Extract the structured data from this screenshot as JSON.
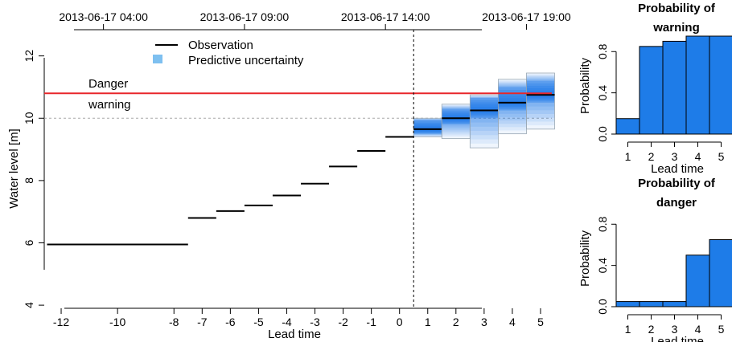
{
  "chart_data": [
    {
      "type": "line",
      "xlabel": "Lead time",
      "ylabel": "Water level [m]",
      "xlim": [
        -12.6,
        5.4
      ],
      "ylim": [
        3.9,
        12.3
      ],
      "x_ticks": [
        -12,
        -10,
        -8,
        -7,
        -6,
        -5,
        -4,
        -3,
        -2,
        -1,
        0,
        1,
        2,
        3,
        4,
        5
      ],
      "y_ticks": [
        4,
        6,
        8,
        10,
        12
      ],
      "top_axis": {
        "ticks_at": [
          -10.5,
          -5.5,
          -0.5,
          4.5
        ],
        "labels": [
          "2013-06-17 04:00",
          "2013-06-17 09:00",
          "2013-06-17 14:00",
          "2013-06-17 19:00"
        ]
      },
      "legend": {
        "position": "top",
        "entries": [
          "Observation",
          "Predictive uncertainty"
        ]
      },
      "threshold_lines": [
        {
          "label": "Danger",
          "y": 10.8,
          "color": "#e8262a",
          "style": "solid"
        },
        {
          "label": "warning",
          "y": 10.0,
          "color": "#a8a8a8",
          "style": "dashed"
        }
      ],
      "now_marker": {
        "x": 0.5,
        "style": "dashed"
      },
      "series": [
        {
          "name": "Observation",
          "segments": [
            {
              "x_start": -12.5,
              "x_end": -7.5,
              "y": 5.95
            },
            {
              "x_start": -7.5,
              "x_end": -6.5,
              "y": 6.8
            },
            {
              "x_start": -6.5,
              "x_end": -5.5,
              "y": 7.02
            },
            {
              "x_start": -5.5,
              "x_end": -4.5,
              "y": 7.2
            },
            {
              "x_start": -4.5,
              "x_end": -3.5,
              "y": 7.52
            },
            {
              "x_start": -3.5,
              "x_end": -2.5,
              "y": 7.9
            },
            {
              "x_start": -2.5,
              "x_end": -1.5,
              "y": 8.45
            },
            {
              "x_start": -1.5,
              "x_end": -0.5,
              "y": 8.95
            },
            {
              "x_start": -0.5,
              "x_end": 0.5,
              "y": 9.4
            }
          ]
        },
        {
          "name": "Predictive uncertainty",
          "forecast": [
            {
              "lead": 1,
              "median": 9.65,
              "q_low": 9.5,
              "q_high": 9.95,
              "min": 9.4,
              "max": 10.0
            },
            {
              "lead": 2,
              "median": 10.0,
              "q_low": 9.8,
              "q_high": 10.3,
              "min": 9.35,
              "max": 10.45
            },
            {
              "lead": 3,
              "median": 10.25,
              "q_low": 10.0,
              "q_high": 10.65,
              "min": 9.05,
              "max": 10.75
            },
            {
              "lead": 4,
              "median": 10.5,
              "q_low": 10.25,
              "q_high": 11.0,
              "min": 9.5,
              "max": 11.25
            },
            {
              "lead": 5,
              "median": 10.75,
              "q_low": 10.5,
              "q_high": 11.2,
              "min": 9.65,
              "max": 11.45
            }
          ]
        }
      ],
      "colors": {
        "uncertainty": "#1a76e8",
        "danger": "#e8262a",
        "warning": "#a8a8a8"
      }
    },
    {
      "type": "bar",
      "title": "Probability of\nwarning",
      "xlabel": "Lead time",
      "ylabel": "Probability",
      "categories": [
        1,
        2,
        3,
        4,
        5
      ],
      "values": [
        0.15,
        0.85,
        0.9,
        0.95,
        0.95
      ],
      "ylim": [
        0,
        0.95
      ],
      "y_ticks": [
        0.0,
        0.4,
        0.8
      ],
      "color": "#1e7ce8"
    },
    {
      "type": "bar",
      "title": "Probability of\ndanger",
      "xlabel": "Lead time",
      "ylabel": "Probability",
      "categories": [
        1,
        2,
        3,
        4,
        5
      ],
      "values": [
        0.05,
        0.05,
        0.05,
        0.5,
        0.65
      ],
      "ylim": [
        0,
        0.95
      ],
      "y_ticks": [
        0.0,
        0.4,
        0.8
      ],
      "color": "#1e7ce8"
    }
  ]
}
